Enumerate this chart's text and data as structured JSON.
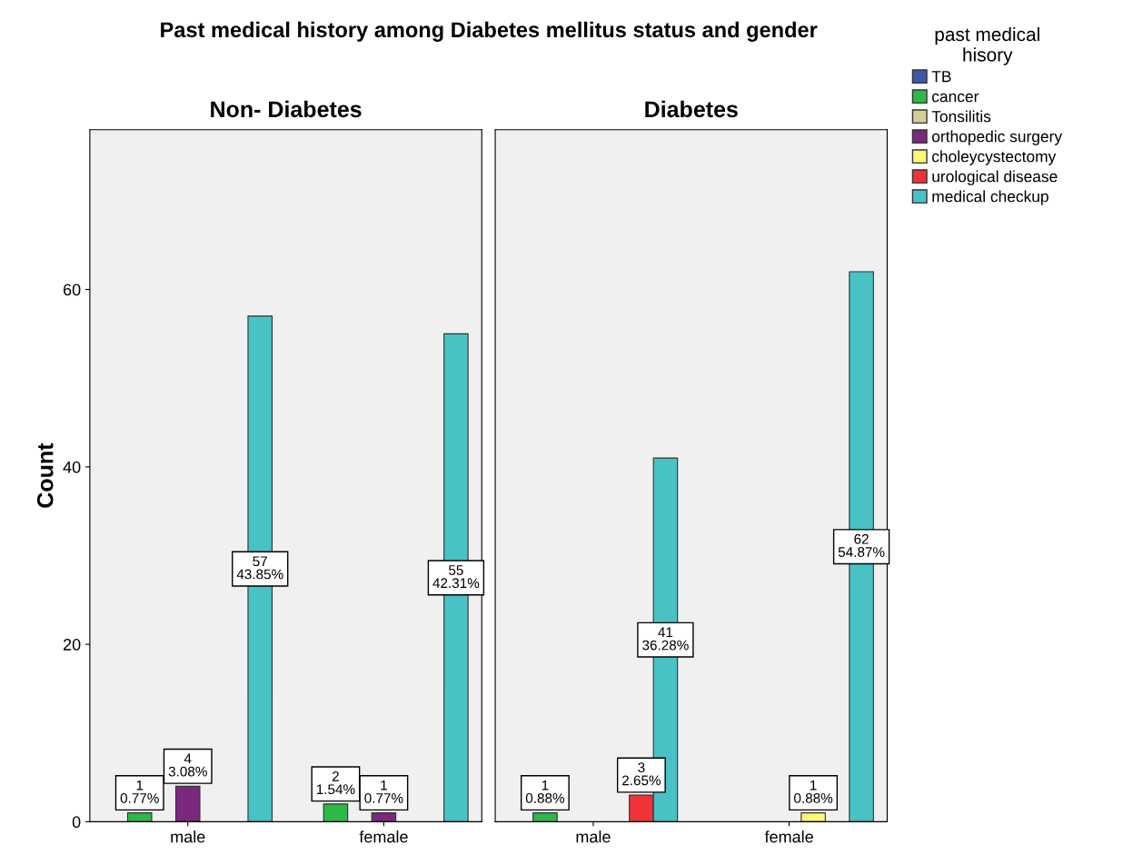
{
  "chart_data": [
    {
      "type": "bar",
      "title": "Non- Diabetes",
      "ylabel": "Count",
      "annotations": [
        "Past medical history among Diabetes mellitus status and gender"
      ],
      "categories": [
        "male",
        "female"
      ],
      "ylim": [
        0,
        78
      ],
      "yticks": [
        0,
        20,
        40,
        60
      ],
      "grid": false,
      "legend": "right",
      "legend_title": "past medical\nhisory",
      "series": [
        {
          "name": "TB",
          "color": "#3e58ac",
          "values": [
            null,
            null
          ]
        },
        {
          "name": "cancer",
          "color": "#2eb848",
          "values": [
            1,
            2
          ],
          "value_labels": [
            "1\n0.77%",
            "2\n1.54%"
          ]
        },
        {
          "name": "Tonsilitis",
          "color": "#d3ce97",
          "values": [
            null,
            null
          ]
        },
        {
          "name": "orthopedic surgery",
          "color": "#7c287d",
          "values": [
            4,
            1
          ],
          "value_labels": [
            "4\n3.08%",
            "1\n0.77%"
          ]
        },
        {
          "name": "choleycystectomy",
          "color": "#fbf873",
          "values": [
            null,
            null
          ]
        },
        {
          "name": "urological disease",
          "color": "#ef3338",
          "values": [
            null,
            null
          ]
        },
        {
          "name": "medical checkup",
          "color": "#48c2c5",
          "values": [
            57,
            55
          ],
          "value_labels": [
            "57\n43.85%",
            "55\n42.31%"
          ]
        }
      ]
    },
    {
      "type": "bar",
      "title": "Diabetes",
      "categories": [
        "male",
        "female"
      ],
      "ylim": [
        0,
        78
      ],
      "yticks": [
        0,
        20,
        40,
        60
      ],
      "tick_labels": "x",
      "grid": false,
      "series": [
        {
          "color": "#3e58ac",
          "values": [
            null,
            null
          ]
        },
        {
          "color": "#2eb848",
          "values": [
            1,
            null
          ],
          "value_labels": [
            "1\n0.88%",
            null
          ]
        },
        {
          "color": "#d3ce97",
          "values": [
            null,
            null
          ]
        },
        {
          "color": "#7c287d",
          "values": [
            null,
            null
          ]
        },
        {
          "color": "#fbf873",
          "values": [
            null,
            1
          ],
          "value_labels": [
            null,
            "1\n0.88%"
          ]
        },
        {
          "color": "#ef3338",
          "values": [
            3,
            null
          ],
          "value_labels": [
            "3\n2.65%",
            null
          ]
        },
        {
          "color": "#48c2c5",
          "values": [
            41,
            62
          ],
          "value_labels": [
            "41\n36.28%",
            "62\n54.87%"
          ]
        }
      ]
    }
  ]
}
